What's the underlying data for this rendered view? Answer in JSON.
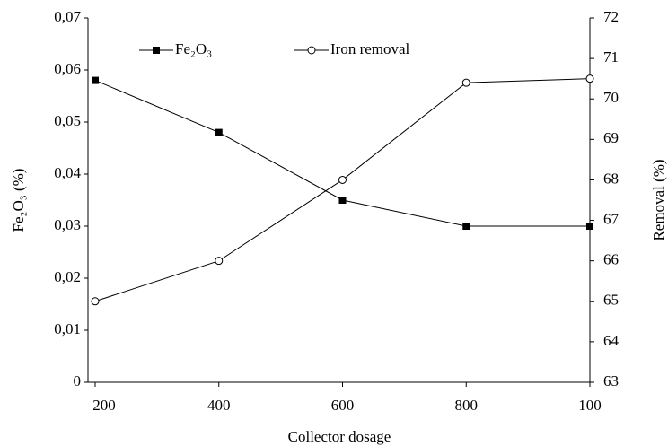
{
  "chart_data": {
    "type": "line",
    "x_label": "Collector dosage",
    "y_label": "Fe₂O₃ (%)",
    "y2_label": "Removal (%)",
    "categories": [
      "200",
      "400",
      "600",
      "800",
      "100"
    ],
    "series": [
      {
        "name": "Fe₂O₃",
        "color": "#000000",
        "marker": "square",
        "values": [
          0.058,
          0.048,
          0.035,
          0.03,
          0.03
        ]
      },
      {
        "name": "Iron removal",
        "color": "#000000",
        "marker": "circle",
        "axis": "y2",
        "values": [
          65.0,
          66.0,
          68.0,
          70.4,
          70.5
        ]
      }
    ],
    "ylim": [
      0,
      0.07
    ],
    "yticks": [
      0,
      {
        "value": 0.01,
        "label": "0,01"
      },
      {
        "value": 0.02,
        "label": "0,02"
      },
      {
        "value": 0.03,
        "label": "0,03"
      },
      {
        "value": 0.04,
        "label": "0,04"
      },
      {
        "value": 0.05,
        "label": "0,05"
      },
      {
        "value": 0.06,
        "label": "0,06"
      },
      {
        "value": 0.07,
        "label": "0,07"
      }
    ],
    "y2lim": [
      63,
      72
    ],
    "y2ticks": [
      63,
      64,
      65,
      66,
      67,
      68,
      69,
      70,
      71,
      72
    ],
    "grid": false
  }
}
